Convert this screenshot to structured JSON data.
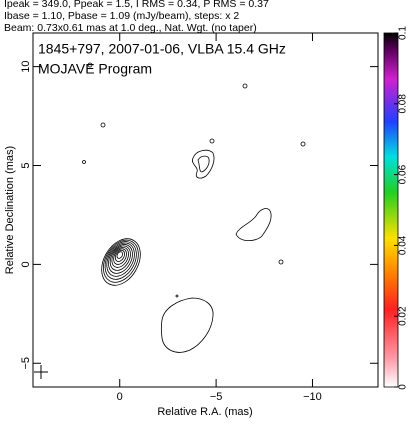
{
  "header": {
    "lines": [
      "Ipeak = 349.0, Ppeak = 1.5, I RMS = 0.34, P RMS = 0.37",
      "Ibase = 1.10, Pbase = 1.09 (mJy/beam), steps: x 2",
      "Beam: 0.73x0.61 mas at 1.0 deg., Nat. Wgt. (no taper)"
    ]
  },
  "chart_data": {
    "type": "contour",
    "title": "1845+797, 2007-01-06, VLBA 15.4 GHz",
    "subtitle": "MOJAVE Program",
    "x_label": "Relative R.A. (mas)",
    "y_label": "Relative Declination (mas)",
    "xlim": [
      4.5,
      -13.4
    ],
    "ylim": [
      -6.2,
      11.7
    ],
    "xticks": [
      0,
      {
        "value": -5,
        "label": "−5"
      },
      {
        "value": -10,
        "label": "−10"
      }
    ],
    "yticks": [
      {
        "value": -5,
        "label": "−5"
      },
      0,
      5,
      10
    ],
    "colorbar_lim": [
      0,
      0.1
    ],
    "colorbar_ticks": [
      0,
      0.02,
      0.04,
      0.06,
      0.08,
      0.1
    ]
  }
}
